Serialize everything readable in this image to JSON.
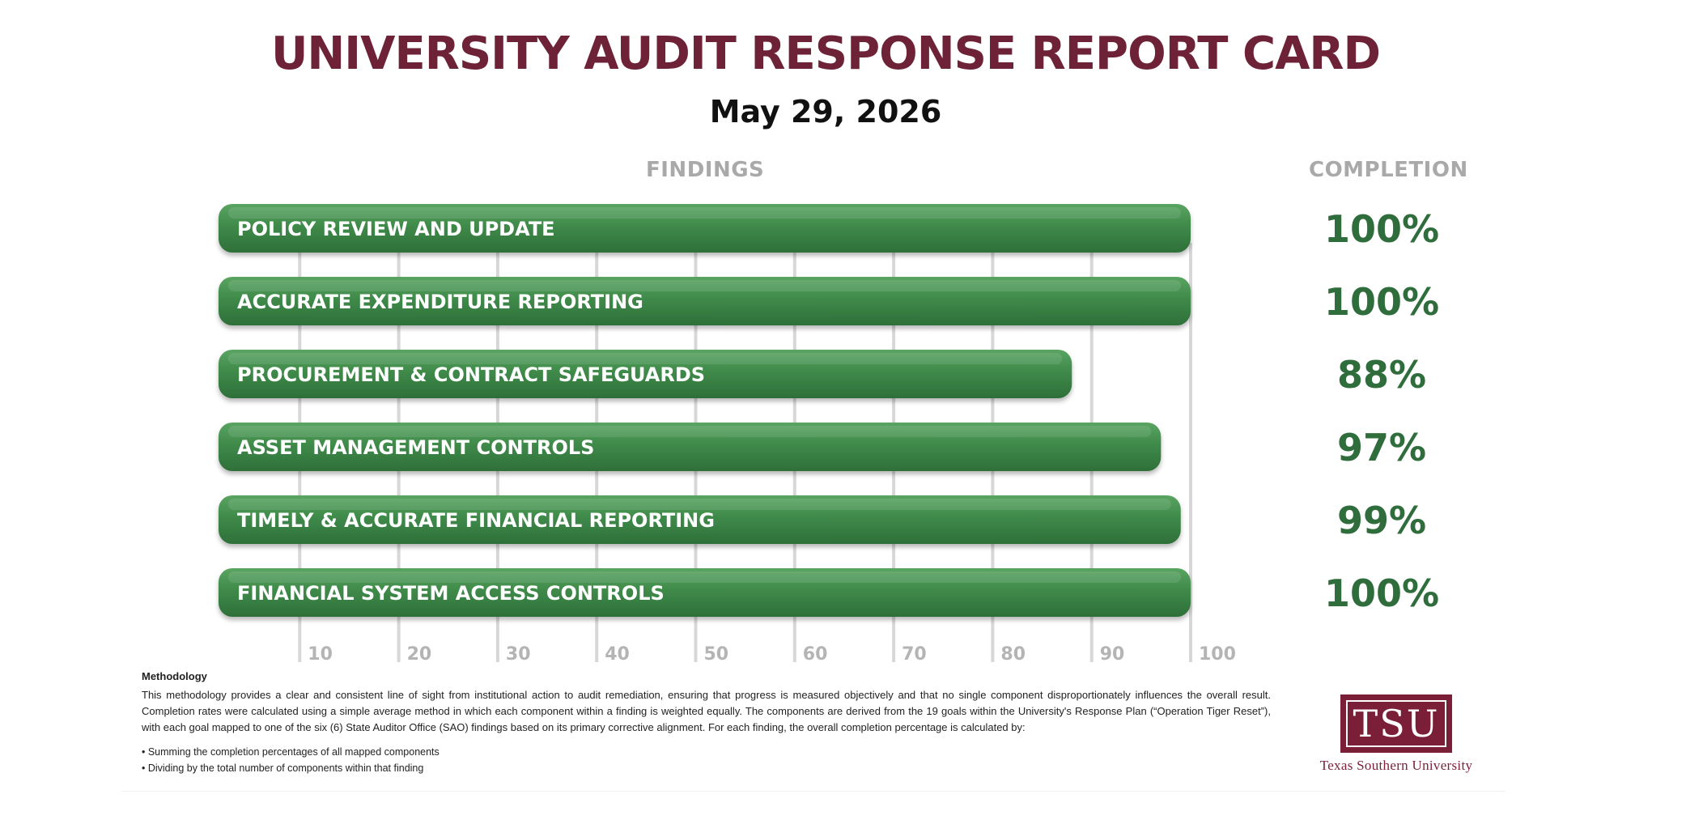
{
  "header": {
    "title": "UNIVERSITY AUDIT RESPONSE REPORT CARD",
    "date": "May 29, 2026",
    "findings_heading": "FINDINGS",
    "completion_heading": "COMPLETION"
  },
  "chart_data": {
    "type": "bar",
    "orientation": "horizontal",
    "categories": [
      "POLICY REVIEW AND UPDATE",
      "ACCURATE EXPENDITURE REPORTING",
      "PROCUREMENT & CONTRACT SAFEGUARDS",
      "ASSET MANAGEMENT CONTROLS",
      "TIMELY & ACCURATE FINANCIAL REPORTING",
      "FINANCIAL SYSTEM ACCESS CONTROLS"
    ],
    "values": [
      100,
      100,
      88,
      97,
      99,
      100
    ],
    "value_labels": [
      "100%",
      "100%",
      "88%",
      "97%",
      "99%",
      "100%"
    ],
    "xlim": [
      0,
      100
    ],
    "x_ticks": [
      10,
      20,
      30,
      40,
      50,
      60,
      70,
      80,
      90,
      100
    ],
    "grid": true,
    "bar_color": "#3f8a4a",
    "value_color": "#2f6e3c"
  },
  "methodology": {
    "heading": "Methodology",
    "body": "This methodology provides a clear and consistent line of sight from institutional action to audit remediation, ensuring that progress is measured objectively and that no single component disproportionately influences the overall result. Completion rates were calculated using a simple average method in which each component within a finding is weighted equally. The components are derived from the 19 goals within the University's Response Plan (“Operation Tiger Reset”), with each goal mapped to one of the six (6) State Auditor Office (SAO) findings based on its primary corrective alignment. For each finding, the overall completion percentage is calculated by:",
    "bullets": [
      "• Summing the completion percentages of all mapped components",
      "• Dividing by the total number of components within that finding"
    ]
  },
  "logo": {
    "mark": "TSU",
    "name": "Texas Southern University"
  }
}
